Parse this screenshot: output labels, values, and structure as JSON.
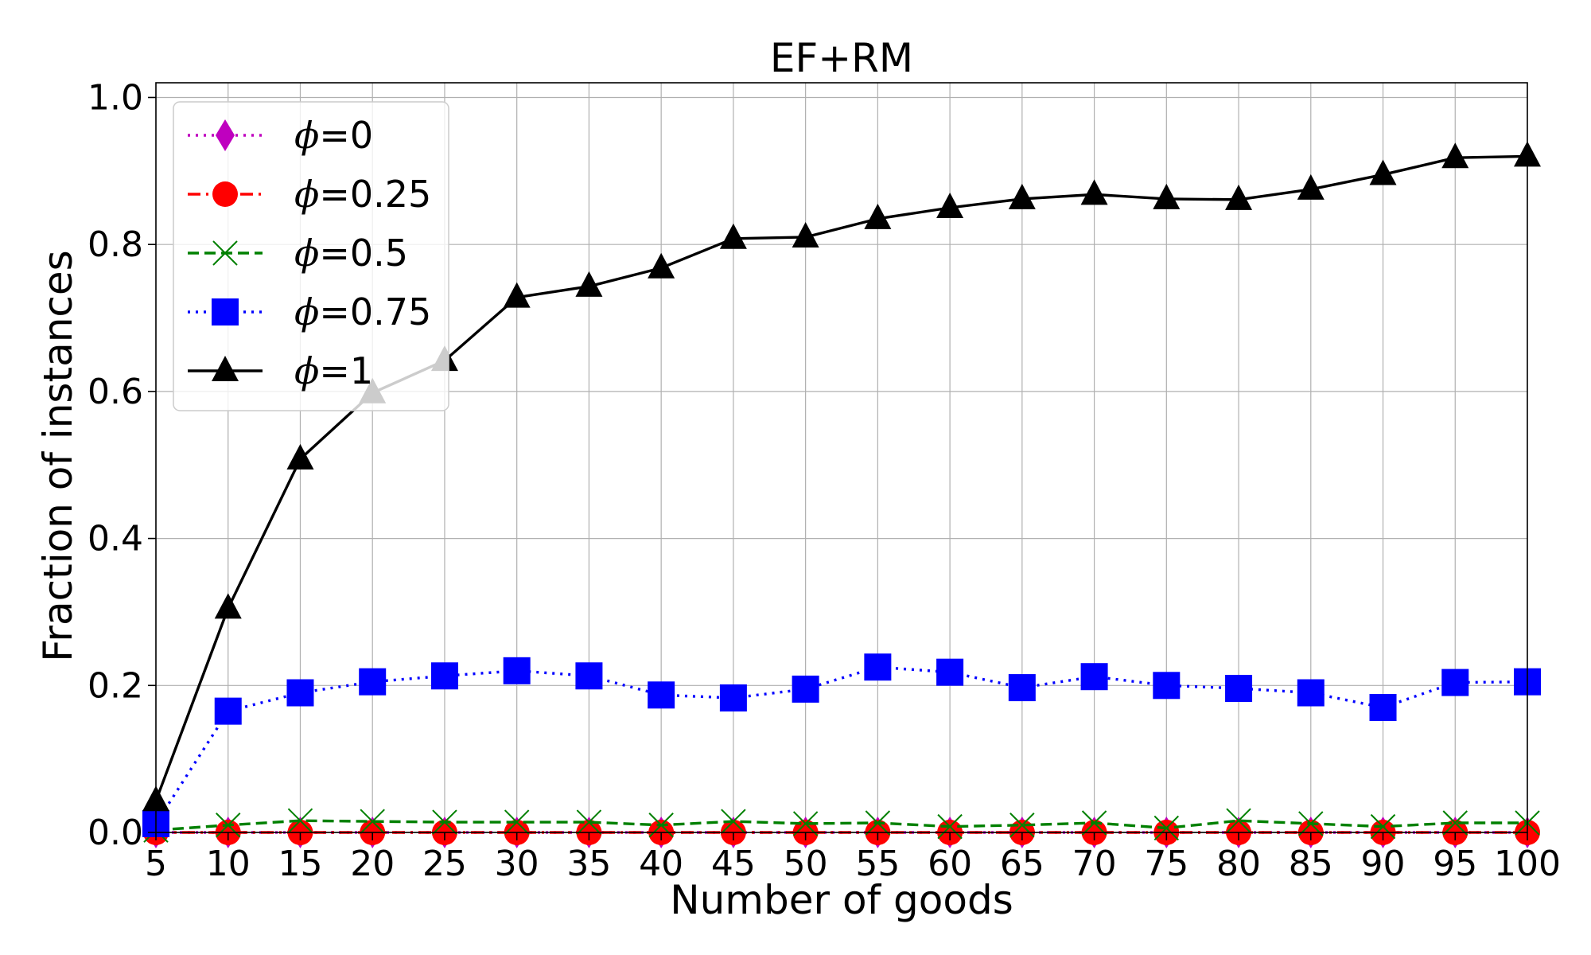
{
  "chart_data": {
    "type": "line",
    "title": "EF+RM",
    "xlabel": "Number of goods",
    "ylabel": "Fraction of instances",
    "x": [
      5,
      10,
      15,
      20,
      25,
      30,
      35,
      40,
      45,
      50,
      55,
      60,
      65,
      70,
      75,
      80,
      85,
      90,
      95,
      100
    ],
    "xticks": [
      "5",
      "10",
      "15",
      "20",
      "25",
      "30",
      "35",
      "40",
      "45",
      "50",
      "55",
      "60",
      "65",
      "70",
      "75",
      "80",
      "85",
      "90",
      "95",
      "100"
    ],
    "yticks": [
      "0.0",
      "0.2",
      "0.4",
      "0.6",
      "0.8",
      "1.0"
    ],
    "xlim": [
      5,
      100
    ],
    "ylim": [
      0,
      1.02
    ],
    "grid": true,
    "legend_position": "upper-left",
    "series": [
      {
        "name_prefix": "ϕ",
        "name_value": "=0",
        "color": "#bf00bf",
        "linestyle": "dotted",
        "marker": "diamond",
        "values": [
          0.0,
          0.0,
          0.0,
          0.0,
          0.0,
          0.0,
          0.0,
          0.0,
          0.0,
          0.0,
          0.0,
          0.0,
          0.0,
          0.0,
          0.0,
          0.0,
          0.0,
          0.0,
          0.0,
          0.0
        ]
      },
      {
        "name_prefix": "ϕ",
        "name_value": "=0.25",
        "color": "#ff0000",
        "linestyle": "dashdot",
        "marker": "circle",
        "values": [
          0.0,
          0.0,
          0.0,
          0.0,
          0.0,
          0.0,
          0.0,
          0.0,
          0.0,
          0.0,
          0.0,
          0.0,
          0.0,
          0.0,
          0.0,
          0.0,
          0.0,
          0.0,
          0.0,
          0.0
        ]
      },
      {
        "name_prefix": "ϕ",
        "name_value": "=0.5",
        "color": "#008000",
        "linestyle": "dashed",
        "marker": "x",
        "values": [
          0.003,
          0.01,
          0.016,
          0.015,
          0.014,
          0.014,
          0.014,
          0.01,
          0.015,
          0.012,
          0.013,
          0.008,
          0.01,
          0.013,
          0.006,
          0.016,
          0.012,
          0.008,
          0.013,
          0.013
        ]
      },
      {
        "name_prefix": "ϕ",
        "name_value": "=0.75",
        "color": "#0000ff",
        "linestyle": "dotted",
        "marker": "square",
        "values": [
          0.012,
          0.165,
          0.19,
          0.205,
          0.213,
          0.22,
          0.213,
          0.187,
          0.183,
          0.195,
          0.225,
          0.218,
          0.197,
          0.212,
          0.2,
          0.196,
          0.19,
          0.17,
          0.204,
          0.205
        ]
      },
      {
        "name_prefix": "ϕ",
        "name_value": "=1",
        "color": "#000000",
        "linestyle": "solid",
        "marker": "triangle",
        "values": [
          0.043,
          0.305,
          0.508,
          0.598,
          0.642,
          0.728,
          0.743,
          0.768,
          0.808,
          0.81,
          0.835,
          0.85,
          0.862,
          0.868,
          0.862,
          0.861,
          0.875,
          0.895,
          0.918,
          0.92
        ]
      }
    ]
  }
}
